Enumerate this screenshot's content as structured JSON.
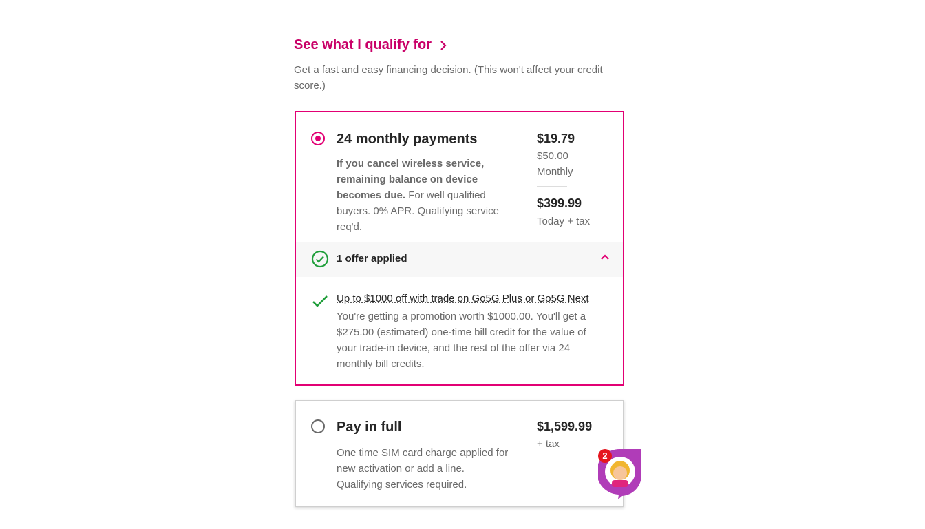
{
  "header": {
    "qualify_link": "See what I qualify for",
    "subtitle": "Get a fast and easy financing decision. (This won't affect your credit score.)"
  },
  "options": [
    {
      "title": "24 monthly payments",
      "selected": true,
      "desc_bold": "If you cancel wireless service, remaining balance on device becomes due.",
      "desc": " For well qualified buyers. 0% APR. Qualifying service req'd.",
      "monthly_price": "$19.79",
      "original_price": "$50.00",
      "monthly_label": "Monthly",
      "today_price": "$399.99",
      "today_label": "Today + tax",
      "offers": {
        "summary": "1 offer applied",
        "expanded": true,
        "items": [
          {
            "title": "Up to $1000 off with trade on Go5G Plus or Go5G Next",
            "text": "You're getting a promotion worth $1000.00. You'll get a $275.00 (estimated) one-time bill credit for the value of your trade-in device, and the rest of the offer via 24 monthly bill credits."
          }
        ]
      }
    },
    {
      "title": "Pay in full",
      "selected": false,
      "desc": "One time SIM card charge applied for new activation or add a line. Qualifying services required.",
      "price": "$1,599.99",
      "price_label": "+ tax"
    }
  ],
  "chat": {
    "badge_count": "2",
    "icon": "chat-avatar-icon"
  },
  "colors": {
    "brand": "#e20074",
    "success": "#1f9e3a"
  }
}
